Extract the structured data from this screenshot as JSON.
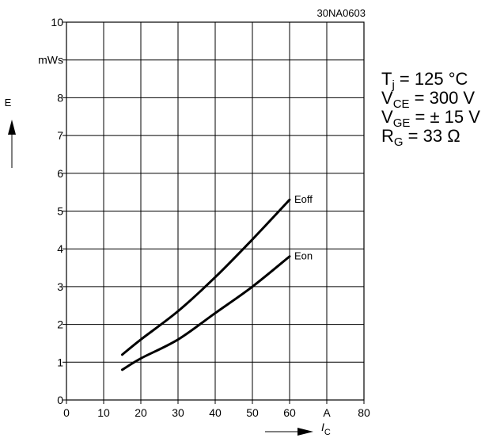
{
  "chart_data": {
    "type": "line",
    "figure_code": "30NA0603",
    "ylabel": "E",
    "yunit": "mWs",
    "xlabel_main": "I",
    "xlabel_sub": "C",
    "xunit": "A",
    "xlim": [
      0,
      80
    ],
    "ylim": [
      0,
      10
    ],
    "x_ticks": [
      "0",
      "10",
      "20",
      "30",
      "40",
      "50",
      "60",
      "A",
      "80"
    ],
    "y_ticks": [
      "0",
      "1",
      "2",
      "3",
      "4",
      "5",
      "6",
      "7",
      "8",
      "mWs",
      "10"
    ],
    "grid": true,
    "series": [
      {
        "name": "Eoff",
        "x": [
          15,
          20,
          30,
          40,
          50,
          60
        ],
        "y": [
          1.2,
          1.6,
          2.35,
          3.25,
          4.25,
          5.3
        ]
      },
      {
        "name": "Eon",
        "x": [
          15,
          20,
          30,
          40,
          50,
          60
        ],
        "y": [
          0.8,
          1.1,
          1.6,
          2.3,
          3.0,
          3.8
        ]
      }
    ],
    "conditions": [
      {
        "main": "T",
        "sub": "j",
        "rest": " = 125 °C"
      },
      {
        "main": "V",
        "sub": "CE",
        "rest": " = 300 V"
      },
      {
        "main": "V",
        "sub": "GE",
        "rest": " = ± 15 V"
      },
      {
        "main": "R",
        "sub": "G",
        "rest": " = 33 Ω"
      }
    ]
  }
}
